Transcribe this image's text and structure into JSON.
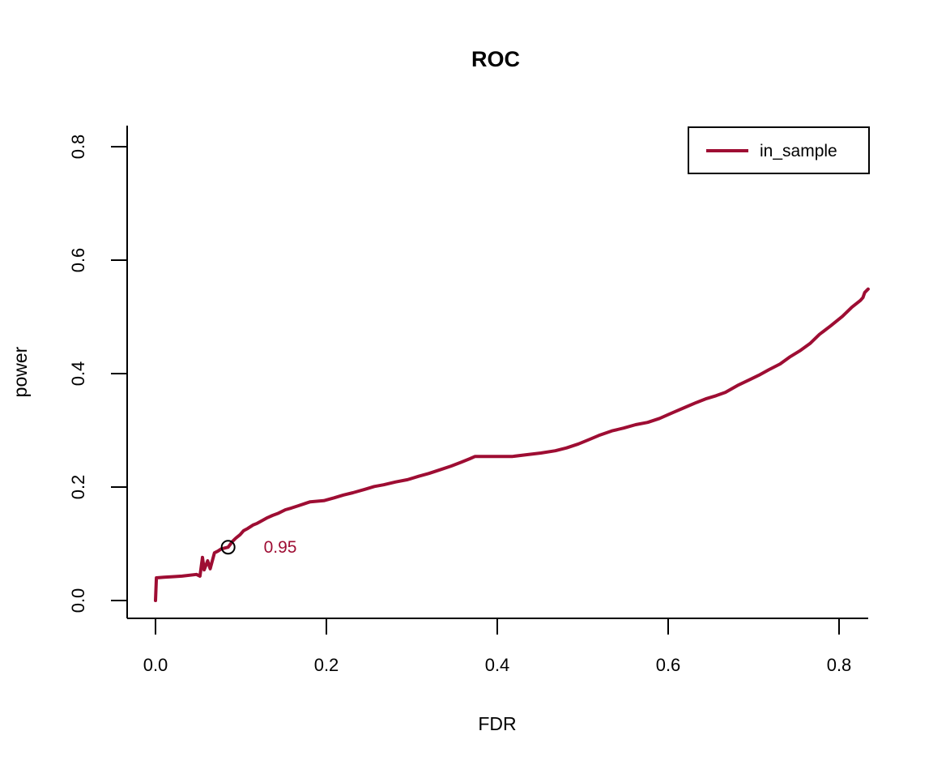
{
  "chart_data": {
    "type": "line",
    "title": "ROC",
    "xlabel": "FDR",
    "ylabel": "power",
    "xlim": [
      -0.033,
      0.835
    ],
    "ylim": [
      -0.031,
      0.838
    ],
    "grid": false,
    "x_ticks": {
      "values": [
        0.0,
        0.2,
        0.4,
        0.6,
        0.8
      ],
      "labels": [
        "0.0",
        "0.2",
        "0.4",
        "0.6",
        "0.8"
      ]
    },
    "y_ticks": {
      "values": [
        0.0,
        0.2,
        0.4,
        0.6,
        0.8
      ],
      "labels": [
        "0.0",
        "0.2",
        "0.4",
        "0.6",
        "0.8"
      ]
    },
    "legend": {
      "position": "top-right",
      "entries": [
        {
          "label": "in_sample",
          "color": "#9E0D33"
        }
      ]
    },
    "annotation": {
      "text": "0.95",
      "x": 0.146,
      "y": 0.094,
      "color": "#9E0D33"
    },
    "marker": {
      "x": 0.085,
      "y": 0.094,
      "shape": "open-circle",
      "color": "#000000"
    },
    "series": [
      {
        "name": "in_sample",
        "color": "#9E0D33",
        "points": [
          [
            0.0,
            0.0
          ],
          [
            0.001,
            0.04
          ],
          [
            0.01,
            0.041
          ],
          [
            0.02,
            0.042
          ],
          [
            0.031,
            0.043
          ],
          [
            0.048,
            0.046
          ],
          [
            0.052,
            0.043
          ],
          [
            0.055,
            0.076
          ],
          [
            0.057,
            0.054
          ],
          [
            0.061,
            0.07
          ],
          [
            0.064,
            0.056
          ],
          [
            0.069,
            0.084
          ],
          [
            0.073,
            0.087
          ],
          [
            0.077,
            0.091
          ],
          [
            0.085,
            0.094
          ],
          [
            0.09,
            0.104
          ],
          [
            0.094,
            0.11
          ],
          [
            0.099,
            0.116
          ],
          [
            0.103,
            0.123
          ],
          [
            0.108,
            0.127
          ],
          [
            0.114,
            0.133
          ],
          [
            0.119,
            0.136
          ],
          [
            0.125,
            0.141
          ],
          [
            0.131,
            0.146
          ],
          [
            0.137,
            0.15
          ],
          [
            0.144,
            0.154
          ],
          [
            0.152,
            0.16
          ],
          [
            0.159,
            0.163
          ],
          [
            0.167,
            0.167
          ],
          [
            0.175,
            0.171
          ],
          [
            0.181,
            0.174
          ],
          [
            0.197,
            0.176
          ],
          [
            0.209,
            0.181
          ],
          [
            0.22,
            0.186
          ],
          [
            0.231,
            0.19
          ],
          [
            0.245,
            0.196
          ],
          [
            0.256,
            0.201
          ],
          [
            0.267,
            0.204
          ],
          [
            0.281,
            0.209
          ],
          [
            0.295,
            0.213
          ],
          [
            0.308,
            0.219
          ],
          [
            0.32,
            0.224
          ],
          [
            0.334,
            0.231
          ],
          [
            0.346,
            0.237
          ],
          [
            0.358,
            0.244
          ],
          [
            0.368,
            0.25
          ],
          [
            0.374,
            0.254
          ],
          [
            0.418,
            0.254
          ],
          [
            0.434,
            0.257
          ],
          [
            0.451,
            0.26
          ],
          [
            0.468,
            0.264
          ],
          [
            0.481,
            0.269
          ],
          [
            0.495,
            0.276
          ],
          [
            0.508,
            0.284
          ],
          [
            0.519,
            0.291
          ],
          [
            0.534,
            0.299
          ],
          [
            0.548,
            0.304
          ],
          [
            0.562,
            0.31
          ],
          [
            0.576,
            0.314
          ],
          [
            0.59,
            0.321
          ],
          [
            0.605,
            0.331
          ],
          [
            0.619,
            0.34
          ],
          [
            0.633,
            0.349
          ],
          [
            0.645,
            0.356
          ],
          [
            0.656,
            0.361
          ],
          [
            0.667,
            0.367
          ],
          [
            0.681,
            0.379
          ],
          [
            0.695,
            0.389
          ],
          [
            0.706,
            0.397
          ],
          [
            0.718,
            0.407
          ],
          [
            0.731,
            0.417
          ],
          [
            0.742,
            0.429
          ],
          [
            0.755,
            0.441
          ],
          [
            0.766,
            0.453
          ],
          [
            0.777,
            0.469
          ],
          [
            0.79,
            0.484
          ],
          [
            0.804,
            0.501
          ],
          [
            0.815,
            0.517
          ],
          [
            0.825,
            0.529
          ],
          [
            0.828,
            0.534
          ],
          [
            0.83,
            0.543
          ],
          [
            0.834,
            0.549
          ]
        ]
      }
    ]
  }
}
